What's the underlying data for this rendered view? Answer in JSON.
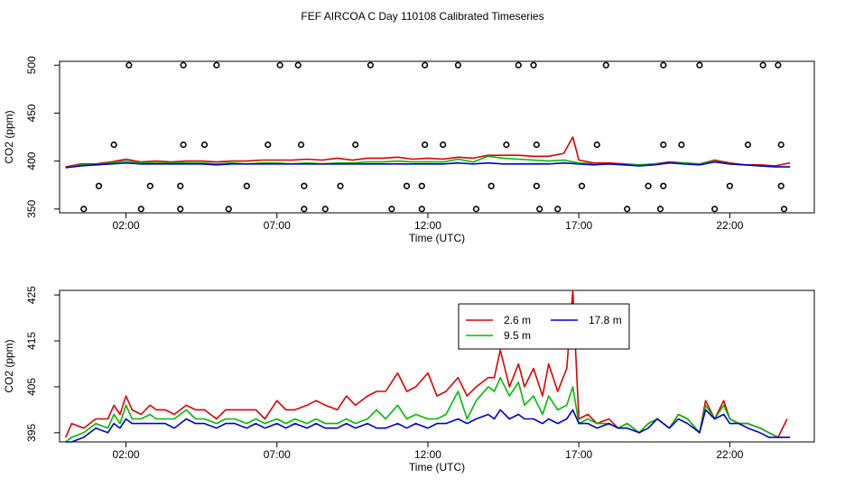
{
  "title": "FEF AIRCOA C  Day 110108  Calibrated Timeseries",
  "chart_data": [
    {
      "type": "line",
      "panel": "top",
      "xlabel": "Time (UTC)",
      "ylabel": "CO2 (ppm)",
      "xlim": [
        -0.2,
        24.8
      ],
      "ylim": [
        346,
        504
      ],
      "xticks": [
        2,
        7,
        12,
        17,
        22
      ],
      "xtick_labels": [
        "02:00",
        "07:00",
        "12:00",
        "17:00",
        "22:00"
      ],
      "yticks": [
        350,
        400,
        450,
        500
      ],
      "ytick_labels": [
        "350",
        "400",
        "450",
        "500"
      ],
      "series": [
        {
          "name": "2.6 m",
          "color": "#dd0000",
          "x": [
            0,
            0.5,
            1,
            1.5,
            2,
            2.5,
            3,
            3.5,
            4,
            4.5,
            5,
            5.5,
            6,
            6.5,
            7,
            7.5,
            8,
            8.5,
            9,
            9.5,
            10,
            10.5,
            11,
            11.5,
            12,
            12.5,
            13,
            13.5,
            14,
            14.5,
            15,
            15.5,
            16,
            16.5,
            16.8,
            17,
            17.5,
            18,
            18.5,
            19,
            19.5,
            20,
            20.5,
            21,
            21.5,
            22,
            22.5,
            23,
            23.5,
            24
          ],
          "y": [
            394,
            397,
            397,
            399,
            402,
            399,
            400,
            399,
            400,
            400,
            399,
            400,
            400,
            401,
            401,
            401,
            402,
            401,
            403,
            401,
            403,
            403,
            404,
            402,
            403,
            402,
            404,
            403,
            406,
            406,
            406,
            405,
            405,
            408,
            425,
            401,
            398,
            398,
            397,
            396,
            397,
            399,
            398,
            397,
            401,
            398,
            396,
            396,
            395,
            398
          ]
        },
        {
          "name": "9.5 m",
          "color": "#00bb00",
          "x": [
            0,
            0.5,
            1,
            1.5,
            2,
            2.5,
            3,
            3.5,
            4,
            4.5,
            5,
            5.5,
            6,
            6.5,
            7,
            7.5,
            8,
            8.5,
            9,
            9.5,
            10,
            10.5,
            11,
            11.5,
            12,
            12.5,
            13,
            13.5,
            14,
            14.5,
            15,
            15.5,
            16,
            16.5,
            17,
            17.5,
            18,
            18.5,
            19,
            19.5,
            20,
            20.5,
            21,
            21.5,
            22,
            22.5,
            23,
            23.5,
            24
          ],
          "y": [
            393,
            396,
            396,
            398,
            400,
            398,
            398,
            398,
            398,
            398,
            397,
            398,
            397,
            398,
            398,
            397,
            398,
            397,
            398,
            398,
            399,
            399,
            400,
            399,
            399,
            399,
            402,
            399,
            405,
            403,
            402,
            401,
            400,
            401,
            398,
            397,
            397,
            396,
            396,
            397,
            398,
            398,
            397,
            400,
            397,
            396,
            395,
            394,
            394
          ]
        },
        {
          "name": "17.8 m",
          "color": "#0000cc",
          "x": [
            0,
            0.5,
            1,
            1.5,
            2,
            2.5,
            3,
            3.5,
            4,
            4.5,
            5,
            5.5,
            6,
            6.5,
            7,
            7.5,
            8,
            8.5,
            9,
            9.5,
            10,
            10.5,
            11,
            11.5,
            12,
            12.5,
            13,
            13.5,
            14,
            14.5,
            15,
            15.5,
            16,
            16.5,
            17,
            17.5,
            18,
            18.5,
            19,
            19.5,
            20,
            20.5,
            21,
            21.5,
            22,
            22.5,
            23,
            23.5,
            24
          ],
          "y": [
            393,
            395,
            396,
            397,
            398,
            397,
            397,
            397,
            397,
            397,
            396,
            397,
            397,
            397,
            397,
            397,
            397,
            397,
            397,
            397,
            397,
            397,
            397,
            397,
            397,
            397,
            398,
            397,
            398,
            397,
            397,
            397,
            397,
            398,
            397,
            396,
            397,
            396,
            395,
            396,
            398,
            397,
            396,
            399,
            397,
            396,
            395,
            394,
            394
          ]
        }
      ],
      "flag_points": {
        "x": [
          2.1,
          3.9,
          5,
          7.1,
          7.7,
          10.1,
          11.9,
          13,
          15,
          15.5,
          17.9,
          19.8,
          21,
          23.1,
          23.6,
          1.6,
          3.9,
          4.6,
          6.7,
          7.8,
          9.6,
          11.9,
          12.5,
          14.6,
          15.6,
          17.6,
          19.8,
          20.4,
          22.6,
          23.7,
          1.1,
          2.8,
          3.8,
          6,
          7.9,
          9.1,
          11.3,
          11.8,
          14.1,
          15.6,
          17.1,
          19.3,
          19.8,
          22,
          23.7,
          0.6,
          2.5,
          3.8,
          5.4,
          7.9,
          8.6,
          10.8,
          11.8,
          13.6,
          15.7,
          16.3,
          18.6,
          19.7,
          21.5,
          23.8
        ],
        "y": [
          500,
          500,
          500,
          500,
          500,
          500,
          500,
          500,
          500,
          500,
          500,
          500,
          500,
          500,
          500,
          417,
          417,
          417,
          417,
          417,
          417,
          417,
          417,
          417,
          417,
          417,
          417,
          417,
          417,
          417,
          374,
          374,
          374,
          374,
          374,
          374,
          374,
          374,
          374,
          374,
          374,
          374,
          374,
          374,
          374,
          350,
          350,
          350,
          350,
          350,
          350,
          350,
          350,
          350,
          350,
          350,
          350,
          350,
          350,
          350
        ]
      }
    },
    {
      "type": "line",
      "panel": "bottom",
      "xlabel": "Time (UTC)",
      "ylabel": "CO2 (ppm)",
      "xlim": [
        -0.2,
        24.8
      ],
      "ylim": [
        393,
        426
      ],
      "xticks": [
        2,
        7,
        12,
        17,
        22
      ],
      "xtick_labels": [
        "02:00",
        "07:00",
        "12:00",
        "17:00",
        "22:00"
      ],
      "yticks": [
        395,
        405,
        415,
        425
      ],
      "ytick_labels": [
        "395",
        "405",
        "415",
        "425"
      ],
      "legend": {
        "position": "top-right",
        "entries": [
          "2.6 m",
          "9.5 m",
          "17.8 m"
        ]
      },
      "series": [
        {
          "name": "2.6 m",
          "color": "#dd0000",
          "x": [
            0,
            0.2,
            0.6,
            1,
            1.4,
            1.6,
            1.8,
            2,
            2.2,
            2.5,
            2.8,
            3,
            3.3,
            3.6,
            4,
            4.3,
            4.6,
            5,
            5.3,
            5.6,
            6,
            6.3,
            6.6,
            7,
            7.3,
            7.6,
            8,
            8.3,
            8.6,
            9,
            9.3,
            9.6,
            10,
            10.3,
            10.6,
            11,
            11.3,
            11.6,
            12,
            12.3,
            12.6,
            13,
            13.3,
            13.6,
            14,
            14.2,
            14.4,
            14.7,
            15,
            15.2,
            15.5,
            15.8,
            16,
            16.3,
            16.6,
            16.8,
            16.9,
            17,
            17.3,
            17.6,
            18,
            18.3,
            18.6,
            19,
            19.3,
            19.6,
            20,
            20.3,
            20.6,
            21,
            21.2,
            21.5,
            21.8,
            22,
            22.3,
            22.6,
            23,
            23.3,
            23.6,
            23.9
          ],
          "y": [
            394,
            397,
            396,
            398,
            398,
            401,
            399,
            403,
            400,
            399,
            401,
            400,
            400,
            399,
            401,
            400,
            400,
            398,
            400,
            400,
            400,
            400,
            398,
            402,
            400,
            400,
            401,
            402,
            401,
            400,
            403,
            401,
            403,
            404,
            404,
            408,
            404,
            405,
            408,
            403,
            404,
            407,
            403,
            405,
            407,
            407,
            413,
            405,
            410,
            405,
            409,
            403,
            410,
            404,
            409,
            426,
            412,
            398,
            399,
            397,
            398,
            396,
            397,
            395,
            397,
            398,
            396,
            399,
            398,
            395,
            402,
            398,
            402,
            398,
            397,
            397,
            396,
            395,
            394,
            398
          ]
        },
        {
          "name": "9.5 m",
          "color": "#00bb00",
          "x": [
            0,
            0.2,
            0.6,
            1,
            1.4,
            1.6,
            1.8,
            2,
            2.2,
            2.5,
            2.8,
            3,
            3.3,
            3.6,
            4,
            4.3,
            4.6,
            5,
            5.3,
            5.6,
            6,
            6.3,
            6.6,
            7,
            7.3,
            7.6,
            8,
            8.3,
            8.6,
            9,
            9.3,
            9.6,
            10,
            10.3,
            10.6,
            11,
            11.3,
            11.6,
            12,
            12.3,
            12.6,
            13,
            13.3,
            13.6,
            14,
            14.2,
            14.4,
            14.7,
            15,
            15.2,
            15.5,
            15.8,
            16,
            16.3,
            16.6,
            16.8,
            17,
            17.3,
            17.6,
            18,
            18.3,
            18.6,
            19,
            19.3,
            19.6,
            20,
            20.3,
            20.6,
            21,
            21.2,
            21.5,
            21.8,
            22,
            22.3,
            22.6,
            23,
            23.3,
            23.6
          ],
          "y": [
            393,
            394,
            395,
            397,
            396,
            399,
            397,
            401,
            398,
            398,
            399,
            398,
            398,
            398,
            400,
            398,
            398,
            397,
            398,
            398,
            397,
            398,
            397,
            398,
            397,
            398,
            397,
            398,
            397,
            397,
            398,
            397,
            398,
            400,
            398,
            401,
            398,
            399,
            398,
            398,
            399,
            404,
            398,
            402,
            405,
            404,
            407,
            403,
            406,
            401,
            403,
            399,
            403,
            400,
            401,
            405,
            397,
            398,
            397,
            397,
            396,
            397,
            395,
            397,
            398,
            396,
            399,
            398,
            395,
            401,
            398,
            401,
            398,
            397,
            397,
            396,
            395,
            394
          ]
        },
        {
          "name": "17.8 m",
          "color": "#0000cc",
          "x": [
            0,
            0.2,
            0.6,
            1,
            1.4,
            1.6,
            1.8,
            2,
            2.2,
            2.5,
            2.8,
            3,
            3.3,
            3.6,
            4,
            4.3,
            4.6,
            5,
            5.3,
            5.6,
            6,
            6.3,
            6.6,
            7,
            7.3,
            7.6,
            8,
            8.3,
            8.6,
            9,
            9.3,
            9.6,
            10,
            10.3,
            10.6,
            11,
            11.3,
            11.6,
            12,
            12.3,
            12.6,
            13,
            13.3,
            13.6,
            14,
            14.2,
            14.4,
            14.7,
            15,
            15.2,
            15.5,
            15.8,
            16,
            16.3,
            16.6,
            16.8,
            17,
            17.3,
            17.6,
            18,
            18.3,
            18.6,
            19,
            19.3,
            19.6,
            20,
            20.3,
            20.6,
            21,
            21.2,
            21.5,
            21.8,
            22,
            22.3,
            22.6,
            23,
            23.3,
            23.6,
            24
          ],
          "y": [
            393,
            393,
            394,
            396,
            395,
            397,
            396,
            398,
            397,
            397,
            397,
            397,
            397,
            396,
            398,
            397,
            397,
            396,
            397,
            397,
            396,
            397,
            396,
            397,
            396,
            397,
            396,
            397,
            396,
            396,
            397,
            396,
            397,
            396,
            396,
            397,
            396,
            397,
            396,
            397,
            397,
            398,
            397,
            398,
            399,
            398,
            400,
            398,
            399,
            398,
            398,
            397,
            398,
            397,
            398,
            400,
            397,
            397,
            396,
            397,
            396,
            396,
            395,
            396,
            398,
            396,
            398,
            397,
            395,
            400,
            398,
            399,
            397,
            397,
            396,
            395,
            394,
            394,
            394
          ]
        }
      ]
    }
  ]
}
